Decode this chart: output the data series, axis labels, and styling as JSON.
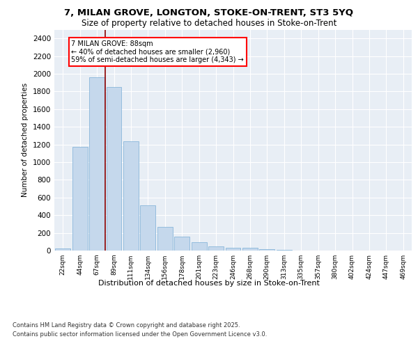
{
  "title1": "7, MILAN GROVE, LONGTON, STOKE-ON-TRENT, ST3 5YQ",
  "title2": "Size of property relative to detached houses in Stoke-on-Trent",
  "xlabel": "Distribution of detached houses by size in Stoke-on-Trent",
  "ylabel": "Number of detached properties",
  "categories": [
    "22sqm",
    "44sqm",
    "67sqm",
    "89sqm",
    "111sqm",
    "134sqm",
    "156sqm",
    "178sqm",
    "201sqm",
    "223sqm",
    "246sqm",
    "268sqm",
    "290sqm",
    "313sqm",
    "335sqm",
    "357sqm",
    "380sqm",
    "402sqm",
    "424sqm",
    "447sqm",
    "469sqm"
  ],
  "values": [
    25,
    1170,
    1960,
    1850,
    1240,
    510,
    265,
    155,
    95,
    45,
    35,
    30,
    18,
    5,
    3,
    2,
    1,
    1,
    0,
    0,
    0
  ],
  "bar_color": "#c5d8ec",
  "bar_edge_color": "#7aaed6",
  "red_line_x": 2.5,
  "annotation_line1": "7 MILAN GROVE: 88sqm",
  "annotation_line2": "← 40% of detached houses are smaller (2,960)",
  "annotation_line3": "59% of semi-detached houses are larger (4,343) →",
  "ylim": [
    0,
    2500
  ],
  "yticks": [
    0,
    200,
    400,
    600,
    800,
    1000,
    1200,
    1400,
    1600,
    1800,
    2000,
    2200,
    2400
  ],
  "plot_bg_color": "#e8eef5",
  "footer1": "Contains HM Land Registry data © Crown copyright and database right 2025.",
  "footer2": "Contains public sector information licensed under the Open Government Licence v3.0."
}
